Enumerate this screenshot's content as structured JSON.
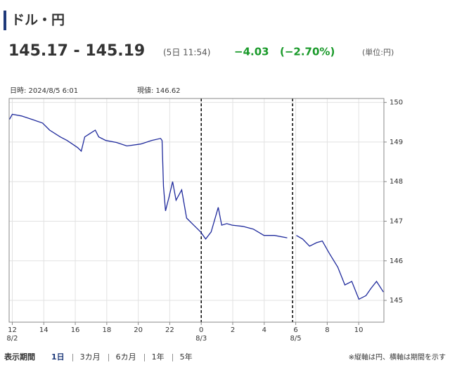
{
  "header": {
    "title": "ドル・円",
    "price": "145.17 - 145.19",
    "time": "(5日 11:54)",
    "change": "−4.03",
    "change_pct": "(−2.70%)",
    "unit": "(単位:円)"
  },
  "chart_info": {
    "datetime": "日時: 2024/8/5 6:01",
    "current": "現値: 146.62"
  },
  "chart_data": {
    "type": "line",
    "color": "#1f2a9c",
    "grid": true,
    "x": [
      -0.18,
      0,
      0.58,
      1.25,
      1.92,
      2.37,
      3.04,
      3.48,
      4.15,
      4.38,
      4.6,
      5.27,
      5.49,
      5.94,
      6.61,
      7.28,
      8.17,
      8.84,
      9.42,
      9.51,
      9.6,
      9.73,
      9.96,
      10.18,
      10.4,
      10.76,
      11.07,
      11.52,
      11.96,
      12.28,
      12.63,
      13.08,
      13.3,
      13.62,
      13.97,
      14.64,
      15.31,
      15.98,
      16.65,
      17.46,
      17.8,
      18.04,
      18.44,
      18.88,
      19.33,
      19.69,
      20.13,
      20.67,
      21.12,
      21.56,
      22.01,
      22.46,
      22.77,
      23.13,
      23.57
    ],
    "values": [
      149.57,
      149.7,
      149.66,
      149.57,
      149.48,
      149.3,
      149.13,
      149.04,
      148.86,
      148.77,
      149.13,
      149.3,
      149.13,
      149.04,
      148.99,
      148.9,
      148.95,
      149.04,
      149.09,
      149.04,
      147.88,
      147.26,
      147.62,
      148.0,
      147.53,
      147.79,
      147.08,
      146.9,
      146.73,
      146.55,
      146.73,
      147.35,
      146.9,
      146.94,
      146.9,
      146.87,
      146.8,
      146.64,
      146.64,
      146.58,
      null,
      146.64,
      146.55,
      146.37,
      146.46,
      146.5,
      146.19,
      145.84,
      145.39,
      145.48,
      145.03,
      145.12,
      145.3,
      145.48,
      145.21
    ],
    "xlim": [
      -0.2,
      23.6
    ],
    "xticks": [
      {
        "value": 0,
        "label": "12"
      },
      {
        "value": 2,
        "label": "14"
      },
      {
        "value": 4,
        "label": "16"
      },
      {
        "value": 6,
        "label": "18"
      },
      {
        "value": 8,
        "label": "20"
      },
      {
        "value": 10,
        "label": "22"
      },
      {
        "value": 12,
        "label": "0"
      },
      {
        "value": 14,
        "label": "2"
      },
      {
        "value": 16,
        "label": "4"
      },
      {
        "value": 18,
        "label": "6"
      },
      {
        "value": 20,
        "label": "8"
      },
      {
        "value": 22,
        "label": "10"
      }
    ],
    "date_labels": [
      {
        "value": 0,
        "label": "8/2"
      },
      {
        "value": 12,
        "label": "8/3"
      },
      {
        "value": 18,
        "label": "8/5"
      }
    ],
    "separators": [
      12,
      17.8
    ],
    "ylim": [
      144.45,
      150.1
    ],
    "yticks": [
      145,
      146,
      147,
      148,
      149,
      150
    ]
  },
  "footer": {
    "label": "表示期間",
    "periods": [
      "1日",
      "3カ月",
      "6カ月",
      "1年",
      "5年"
    ],
    "note": "※縦軸は円、横軸は期間を示す"
  }
}
